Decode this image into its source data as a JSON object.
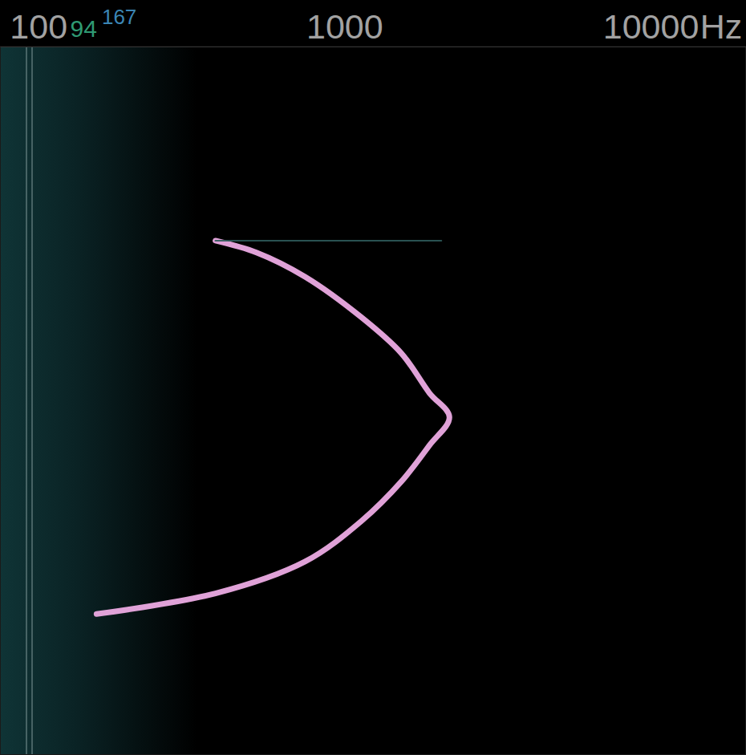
{
  "chart_data": {
    "type": "line",
    "x_label": "Hz",
    "log": "x",
    "grid": false,
    "tick_labels": "x",
    "xlim": [
      75,
      20500
    ],
    "xticks": [
      100,
      1000,
      10000
    ],
    "ylim": [
      0,
      10
    ],
    "annotations": [
      {
        "text": "94",
        "color": "#2f9a73"
      },
      {
        "text": "167",
        "color": "#3b86b5"
      }
    ],
    "series": [
      {
        "color": "#e0a2d8",
        "x": [
          155,
          379,
          744,
          1135,
          1535,
          1895,
          2203,
          1895,
          1535,
          1135,
          744,
          518,
          379
        ],
        "values": [
          8.01,
          7.72,
          7.27,
          6.7,
          6.14,
          5.63,
          5.23,
          4.89,
          4.33,
          3.82,
          3.25,
          2.91,
          2.74
        ]
      },
      {
        "color": "#2e5a5a",
        "x": [
          379,
          2074
        ],
        "values": [
          2.74,
          2.74
        ]
      }
    ]
  }
}
